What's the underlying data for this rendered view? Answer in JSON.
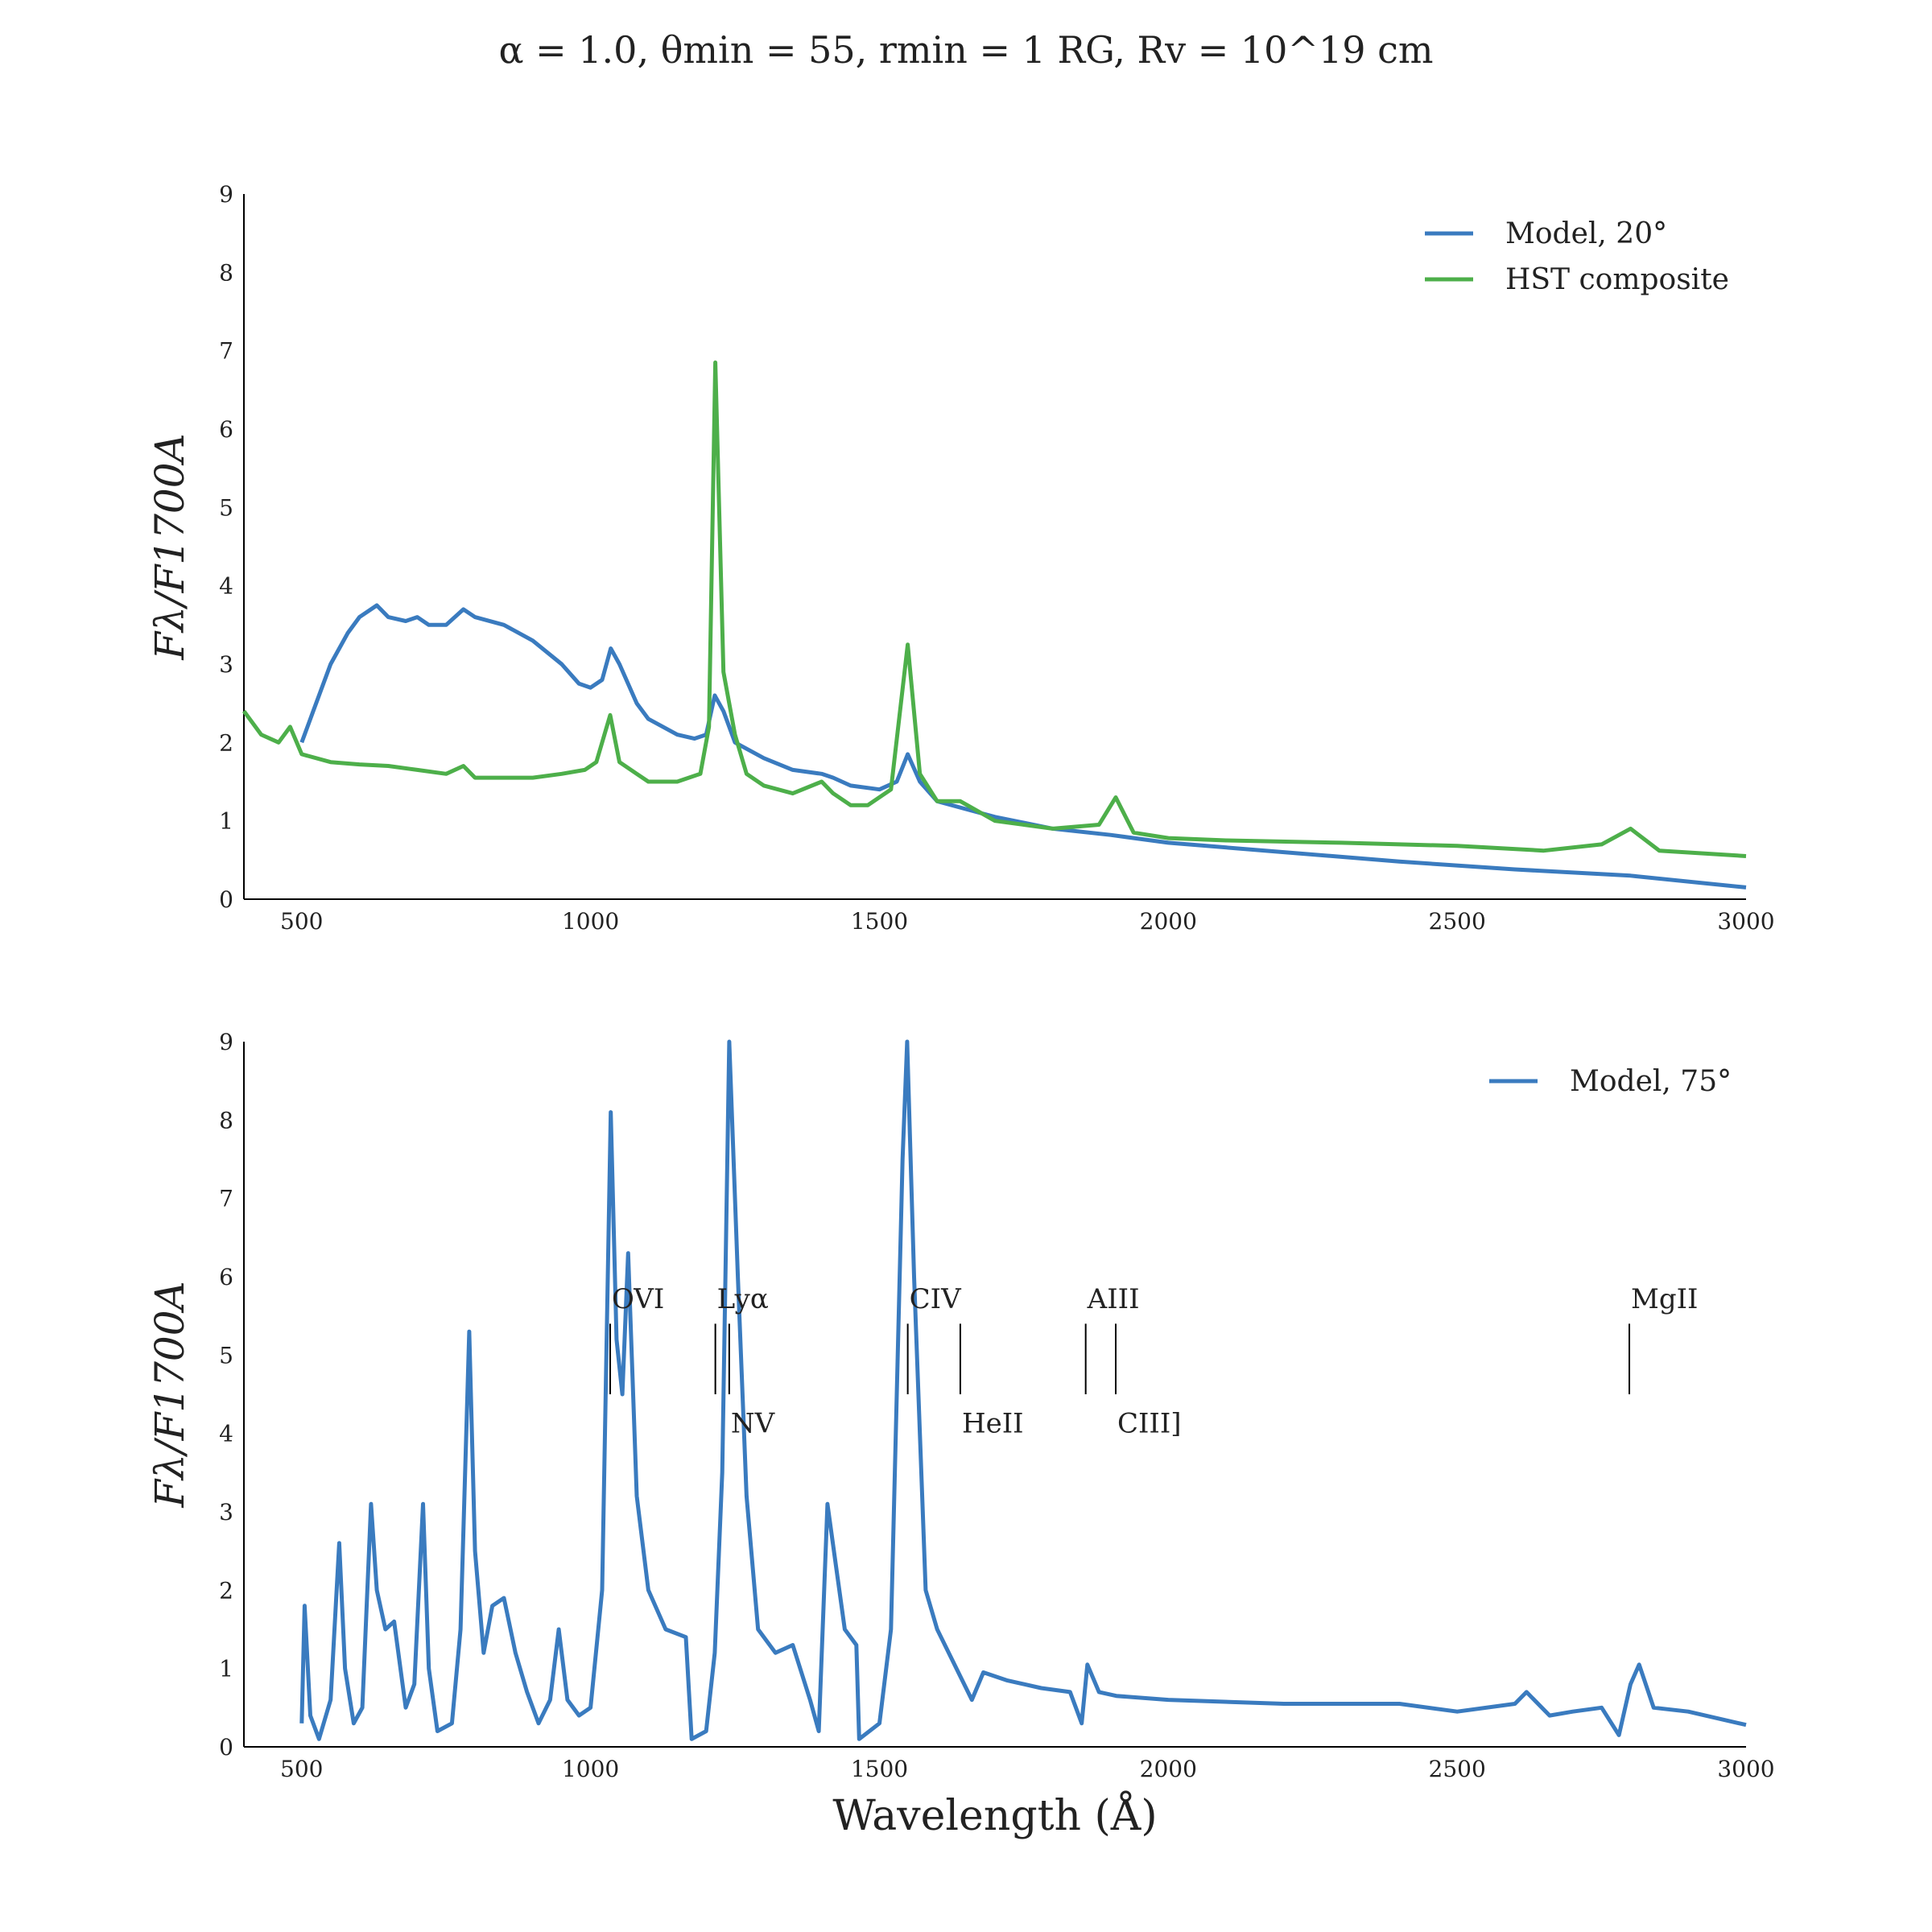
{
  "figure": {
    "title": "α = 1.0, θmin = 55, rmin = 1 RG, Rv = 10^19 cm",
    "xlabel": "Wavelength (Å)"
  },
  "colors": {
    "model": "#3a7bbf",
    "hst": "#4daf4a",
    "axis": "#000000",
    "text": "#222222"
  },
  "chart_data": [
    {
      "type": "line",
      "panel": "top",
      "ylabel": "Fλ/F1700A",
      "xlim": [
        400,
        3000
      ],
      "ylim": [
        0,
        9
      ],
      "x_ticks": [
        500,
        1000,
        1500,
        2000,
        2500,
        3000
      ],
      "x_tick_labels": [
        "500",
        "1000",
        "1500",
        "2000",
        "2500",
        "3000"
      ],
      "y_ticks": [
        0,
        1,
        2,
        3,
        4,
        5,
        6,
        7,
        8,
        9
      ],
      "y_tick_labels": [
        "0",
        "1",
        "2",
        "3",
        "4",
        "5",
        "6",
        "7",
        "8",
        "9"
      ],
      "grid": false,
      "legend_position": "top-right",
      "series": [
        {
          "name": "Model, 20°",
          "color": "#3a7bbf",
          "points": [
            [
              500,
              2.0
            ],
            [
              520,
              2.4
            ],
            [
              550,
              3.0
            ],
            [
              580,
              3.4
            ],
            [
              600,
              3.6
            ],
            [
              630,
              3.75
            ],
            [
              650,
              3.6
            ],
            [
              680,
              3.55
            ],
            [
              700,
              3.6
            ],
            [
              720,
              3.5
            ],
            [
              750,
              3.5
            ],
            [
              780,
              3.7
            ],
            [
              800,
              3.6
            ],
            [
              850,
              3.5
            ],
            [
              900,
              3.3
            ],
            [
              950,
              3.0
            ],
            [
              980,
              2.75
            ],
            [
              1000,
              2.7
            ],
            [
              1020,
              2.8
            ],
            [
              1035,
              3.2
            ],
            [
              1050,
              3.0
            ],
            [
              1080,
              2.5
            ],
            [
              1100,
              2.3
            ],
            [
              1150,
              2.1
            ],
            [
              1180,
              2.05
            ],
            [
              1200,
              2.1
            ],
            [
              1215,
              2.6
            ],
            [
              1230,
              2.4
            ],
            [
              1250,
              2.0
            ],
            [
              1300,
              1.8
            ],
            [
              1350,
              1.65
            ],
            [
              1400,
              1.6
            ],
            [
              1420,
              1.55
            ],
            [
              1450,
              1.45
            ],
            [
              1500,
              1.4
            ],
            [
              1530,
              1.5
            ],
            [
              1549,
              1.85
            ],
            [
              1570,
              1.5
            ],
            [
              1600,
              1.25
            ],
            [
              1650,
              1.15
            ],
            [
              1700,
              1.05
            ],
            [
              1800,
              0.9
            ],
            [
              1900,
              0.82
            ],
            [
              2000,
              0.72
            ],
            [
              2200,
              0.6
            ],
            [
              2400,
              0.48
            ],
            [
              2600,
              0.38
            ],
            [
              2800,
              0.3
            ],
            [
              3000,
              0.15
            ]
          ]
        },
        {
          "name": "HST composite",
          "color": "#4daf4a",
          "points": [
            [
              400,
              2.4
            ],
            [
              430,
              2.1
            ],
            [
              460,
              2.0
            ],
            [
              480,
              2.2
            ],
            [
              500,
              1.85
            ],
            [
              550,
              1.75
            ],
            [
              600,
              1.72
            ],
            [
              650,
              1.7
            ],
            [
              700,
              1.65
            ],
            [
              750,
              1.6
            ],
            [
              780,
              1.7
            ],
            [
              800,
              1.55
            ],
            [
              850,
              1.55
            ],
            [
              900,
              1.55
            ],
            [
              950,
              1.6
            ],
            [
              990,
              1.65
            ],
            [
              1010,
              1.75
            ],
            [
              1034,
              2.35
            ],
            [
              1050,
              1.75
            ],
            [
              1080,
              1.6
            ],
            [
              1100,
              1.5
            ],
            [
              1150,
              1.5
            ],
            [
              1190,
              1.6
            ],
            [
              1205,
              2.2
            ],
            [
              1216,
              6.85
            ],
            [
              1230,
              2.9
            ],
            [
              1250,
              2.1
            ],
            [
              1270,
              1.6
            ],
            [
              1300,
              1.45
            ],
            [
              1350,
              1.35
            ],
            [
              1400,
              1.5
            ],
            [
              1420,
              1.35
            ],
            [
              1450,
              1.2
            ],
            [
              1480,
              1.2
            ],
            [
              1520,
              1.4
            ],
            [
              1549,
              3.25
            ],
            [
              1570,
              1.6
            ],
            [
              1600,
              1.25
            ],
            [
              1640,
              1.25
            ],
            [
              1700,
              1.0
            ],
            [
              1750,
              0.95
            ],
            [
              1800,
              0.9
            ],
            [
              1880,
              0.95
            ],
            [
              1909,
              1.3
            ],
            [
              1940,
              0.85
            ],
            [
              2000,
              0.78
            ],
            [
              2100,
              0.75
            ],
            [
              2300,
              0.72
            ],
            [
              2500,
              0.68
            ],
            [
              2650,
              0.62
            ],
            [
              2750,
              0.7
            ],
            [
              2800,
              0.9
            ],
            [
              2850,
              0.62
            ],
            [
              3000,
              0.55
            ]
          ]
        }
      ]
    },
    {
      "type": "line",
      "panel": "bottom",
      "ylabel": "Fλ/F1700A",
      "xlabel": "Wavelength (Å)",
      "xlim": [
        400,
        3000
      ],
      "ylim": [
        0,
        9
      ],
      "x_ticks": [
        500,
        1000,
        1500,
        2000,
        2500,
        3000
      ],
      "x_tick_labels": [
        "500",
        "1000",
        "1500",
        "2000",
        "2500",
        "3000"
      ],
      "y_ticks": [
        0,
        1,
        2,
        3,
        4,
        5,
        6,
        7,
        8,
        9
      ],
      "y_tick_labels": [
        "0",
        "1",
        "2",
        "3",
        "4",
        "5",
        "6",
        "7",
        "8",
        "9"
      ],
      "grid": false,
      "legend_position": "top-right",
      "series": [
        {
          "name": "Model, 75°",
          "color": "#3a7bbf",
          "points": [
            [
              500,
              0.3
            ],
            [
              505,
              1.8
            ],
            [
              515,
              0.4
            ],
            [
              530,
              0.1
            ],
            [
              550,
              0.6
            ],
            [
              565,
              2.6
            ],
            [
              575,
              1.0
            ],
            [
              590,
              0.3
            ],
            [
              605,
              0.5
            ],
            [
              620,
              3.1
            ],
            [
              630,
              2.0
            ],
            [
              645,
              1.5
            ],
            [
              660,
              1.6
            ],
            [
              680,
              0.5
            ],
            [
              695,
              0.8
            ],
            [
              710,
              3.1
            ],
            [
              720,
              1.0
            ],
            [
              735,
              0.2
            ],
            [
              760,
              0.3
            ],
            [
              775,
              1.5
            ],
            [
              790,
              5.3
            ],
            [
              800,
              2.5
            ],
            [
              815,
              1.2
            ],
            [
              830,
              1.8
            ],
            [
              850,
              1.9
            ],
            [
              870,
              1.2
            ],
            [
              890,
              0.7
            ],
            [
              910,
              0.3
            ],
            [
              930,
              0.6
            ],
            [
              945,
              1.5
            ],
            [
              960,
              0.6
            ],
            [
              980,
              0.4
            ],
            [
              1000,
              0.5
            ],
            [
              1020,
              2.0
            ],
            [
              1035,
              8.1
            ],
            [
              1045,
              5.2
            ],
            [
              1055,
              4.5
            ],
            [
              1065,
              6.3
            ],
            [
              1080,
              3.2
            ],
            [
              1100,
              2.0
            ],
            [
              1130,
              1.5
            ],
            [
              1165,
              1.4
            ],
            [
              1175,
              0.1
            ],
            [
              1200,
              0.2
            ],
            [
              1215,
              1.2
            ],
            [
              1228,
              3.5
            ],
            [
              1240,
              9.0
            ],
            [
              1255,
              6.0
            ],
            [
              1270,
              3.2
            ],
            [
              1290,
              1.5
            ],
            [
              1320,
              1.2
            ],
            [
              1350,
              1.3
            ],
            [
              1380,
              0.6
            ],
            [
              1395,
              0.2
            ],
            [
              1410,
              3.1
            ],
            [
              1425,
              2.3
            ],
            [
              1440,
              1.5
            ],
            [
              1460,
              1.3
            ],
            [
              1465,
              0.1
            ],
            [
              1500,
              0.3
            ],
            [
              1520,
              1.5
            ],
            [
              1540,
              7.5
            ],
            [
              1548,
              9.0
            ],
            [
              1560,
              6.0
            ],
            [
              1580,
              2.0
            ],
            [
              1600,
              1.5
            ],
            [
              1640,
              0.9
            ],
            [
              1660,
              0.6
            ],
            [
              1680,
              0.95
            ],
            [
              1720,
              0.85
            ],
            [
              1780,
              0.75
            ],
            [
              1830,
              0.7
            ],
            [
              1850,
              0.3
            ],
            [
              1860,
              1.05
            ],
            [
              1880,
              0.7
            ],
            [
              1910,
              0.65
            ],
            [
              2000,
              0.6
            ],
            [
              2200,
              0.55
            ],
            [
              2400,
              0.55
            ],
            [
              2500,
              0.45
            ],
            [
              2600,
              0.55
            ],
            [
              2620,
              0.7
            ],
            [
              2660,
              0.4
            ],
            [
              2700,
              0.45
            ],
            [
              2750,
              0.5
            ],
            [
              2780,
              0.15
            ],
            [
              2800,
              0.8
            ],
            [
              2815,
              1.05
            ],
            [
              2840,
              0.5
            ],
            [
              2900,
              0.45
            ],
            [
              3000,
              0.28
            ]
          ]
        }
      ],
      "annotations": [
        {
          "label": "OVI",
          "x": 1034,
          "position": "above"
        },
        {
          "label": "Lyα",
          "x": 1216,
          "position": "above"
        },
        {
          "label": "NV",
          "x": 1240,
          "position": "below"
        },
        {
          "label": "CIV",
          "x": 1549,
          "position": "above"
        },
        {
          "label": "HeII",
          "x": 1640,
          "position": "below"
        },
        {
          "label": "AIII",
          "x": 1857,
          "position": "above"
        },
        {
          "label": "CIII]",
          "x": 1909,
          "position": "below"
        },
        {
          "label": "MgII",
          "x": 2798,
          "position": "above"
        }
      ]
    }
  ]
}
